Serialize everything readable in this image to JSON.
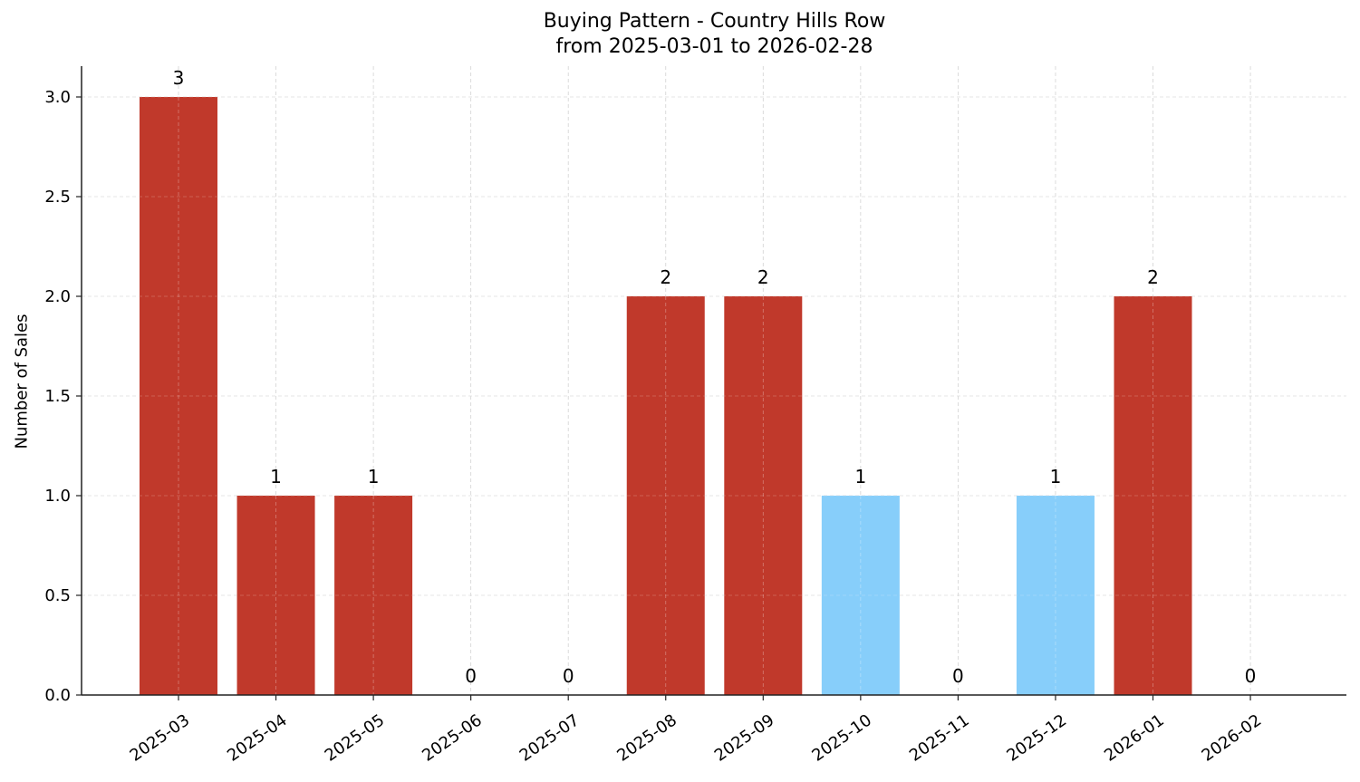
{
  "chart_data": {
    "type": "bar",
    "title": "Buying Pattern - Country Hills Row",
    "subtitle": "from 2025-03-01 to 2026-02-28",
    "xlabel": "",
    "ylabel": "Number of Sales",
    "categories": [
      "2025-03",
      "2025-04",
      "2025-05",
      "2025-06",
      "2025-07",
      "2025-08",
      "2025-09",
      "2025-10",
      "2025-11",
      "2025-12",
      "2026-01",
      "2026-02"
    ],
    "values": [
      3,
      1,
      1,
      0,
      0,
      2,
      2,
      1,
      0,
      1,
      2,
      0
    ],
    "bar_colors": [
      "#c0392b",
      "#c0392b",
      "#c0392b",
      "#c0392b",
      "#c0392b",
      "#c0392b",
      "#c0392b",
      "#87cefa",
      "#c0392b",
      "#87cefa",
      "#c0392b",
      "#c0392b"
    ],
    "data_labels": [
      "3",
      "1",
      "1",
      "0",
      "0",
      "2",
      "2",
      "1",
      "0",
      "1",
      "2",
      "0"
    ],
    "ylim": [
      0,
      3.15
    ],
    "yticks": [
      "0.0",
      "0.5",
      "1.0",
      "1.5",
      "2.0",
      "2.5",
      "3.0"
    ],
    "grid": true,
    "legend": null
  },
  "colors": {
    "primary_bar": "#c0392b",
    "highlight_bar": "#87cefa",
    "grid": "#d3d3d3",
    "axis": "#222222"
  }
}
